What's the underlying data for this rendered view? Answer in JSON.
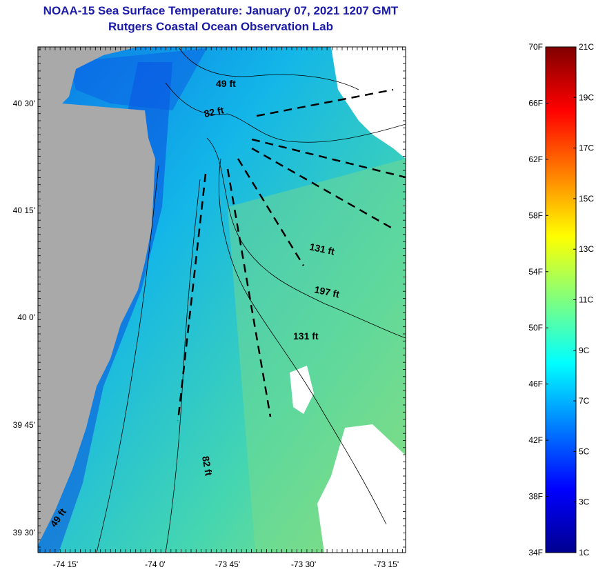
{
  "title": "NOAA-15 Sea Surface Temperature:  January 07, 2021 1207 GMT",
  "subtitle": "Rutgers Coastal Ocean Observation Lab",
  "lat_ticks": [
    "40 30'",
    "40 15'",
    "40 0'",
    "39 45'",
    "39 30'"
  ],
  "lon_ticks": [
    "-74 15'",
    "-74 0'",
    "-73 45'",
    "-73 30'",
    "-73 15'"
  ],
  "contour_labels": [
    "49 ft",
    "82 ft",
    "131 ft",
    "197 ft",
    "131 ft",
    "82 ft",
    "49 ft"
  ],
  "colorbar": {
    "fahrenheit": [
      "70F",
      "66F",
      "62F",
      "58F",
      "54F",
      "50F",
      "46F",
      "42F",
      "38F",
      "34F"
    ],
    "celsius": [
      "21C",
      "19C",
      "17C",
      "15C",
      "13C",
      "11C",
      "9C",
      "7C",
      "5C",
      "3C",
      "1C"
    ],
    "range_c": [
      1,
      21
    ],
    "range_f": [
      34,
      70
    ]
  },
  "colors": {
    "title": "#1a1aa8",
    "land": "#a9a9a9"
  }
}
